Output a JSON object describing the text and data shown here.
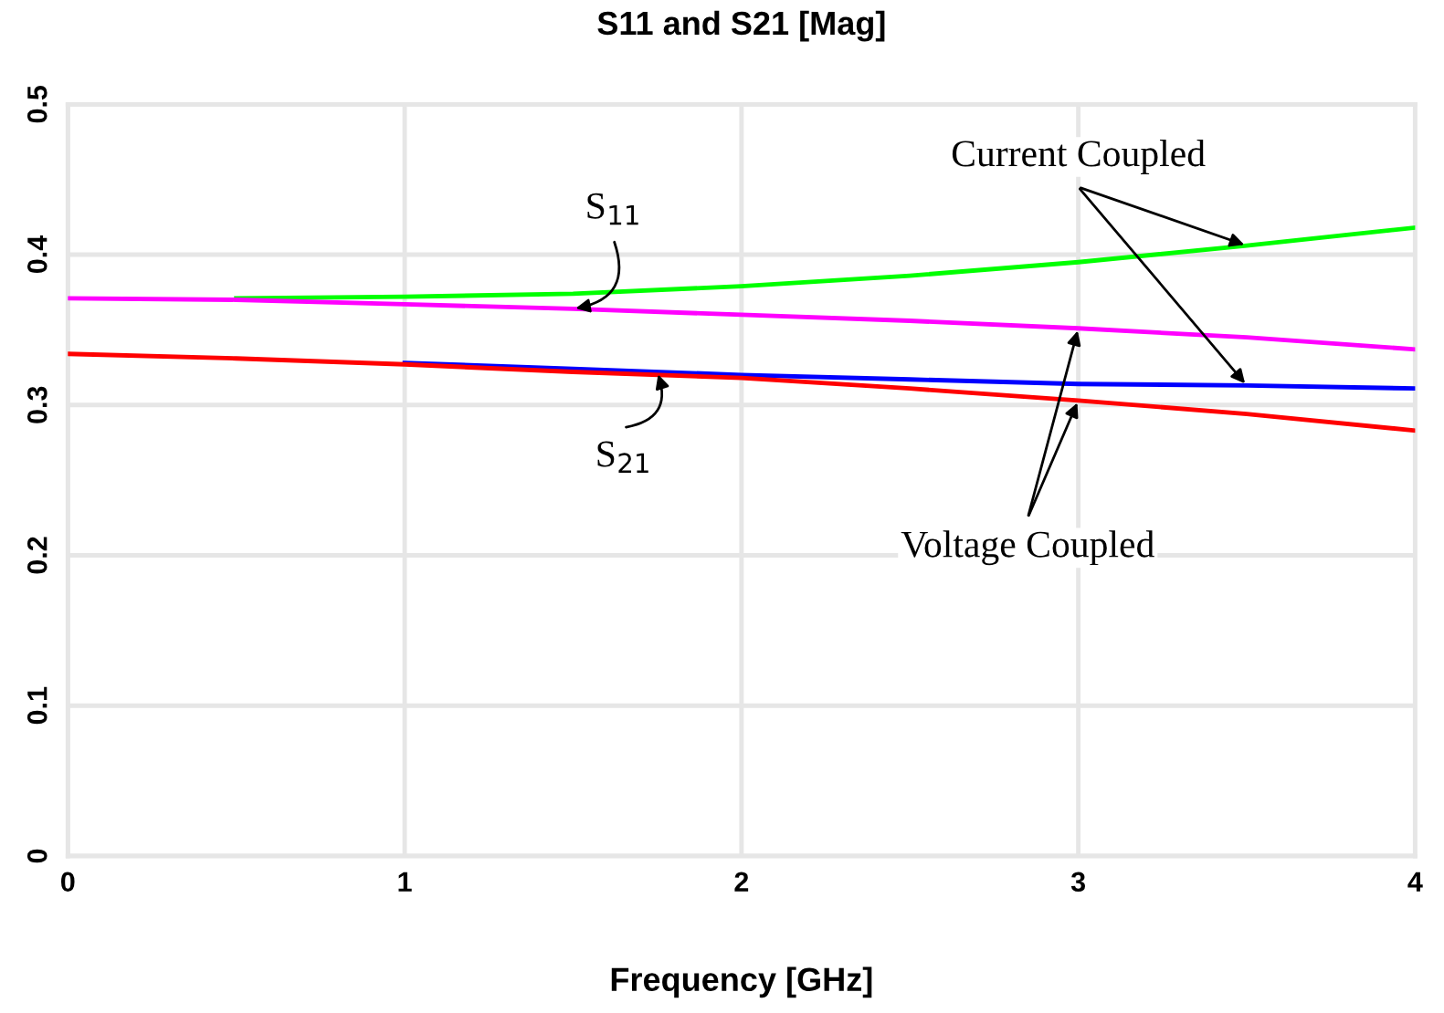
{
  "chart_data": {
    "type": "line",
    "title": "S11 and S21 [Mag]",
    "xlabel": "Frequency [GHz]",
    "xlim": [
      0,
      4
    ],
    "xticks": [
      0,
      1,
      2,
      3,
      4
    ],
    "ylim": [
      0,
      0.5
    ],
    "yticks": [
      0,
      0.1,
      0.2,
      0.3,
      0.4,
      0.5
    ],
    "grid": true,
    "line_style": "solid",
    "marker": "none",
    "x": [
      0,
      0.5,
      1,
      1.5,
      2,
      2.5,
      3,
      3.5,
      4
    ],
    "series": [
      {
        "color": "#00ff00",
        "values": [
          null,
          0.371,
          0.372,
          0.374,
          0.379,
          0.386,
          0.395,
          0.406,
          0.418
        ]
      },
      {
        "color": "#ff00ff",
        "values": [
          0.371,
          0.37,
          0.367,
          0.364,
          0.36,
          0.356,
          0.351,
          0.345,
          0.337
        ]
      },
      {
        "color": "#0000ff",
        "values": [
          null,
          null,
          0.328,
          0.324,
          0.32,
          0.317,
          0.314,
          0.313,
          0.311
        ]
      },
      {
        "color": "#ff0000",
        "values": [
          0.334,
          0.331,
          0.327,
          0.322,
          0.318,
          0.311,
          0.303,
          0.294,
          0.283
        ]
      }
    ],
    "annotations": [
      {
        "text": "S$_{11}$",
        "x": 1.5,
        "y": 0.364
      },
      {
        "text": "S$_{21}$",
        "x": 1.75,
        "y": 0.322
      },
      {
        "text": "Current Coupled",
        "x": 3.5,
        "y": 0.406
      },
      {
        "text": "Voltage Coupled",
        "x": 3.0,
        "y": 0.351
      }
    ]
  }
}
